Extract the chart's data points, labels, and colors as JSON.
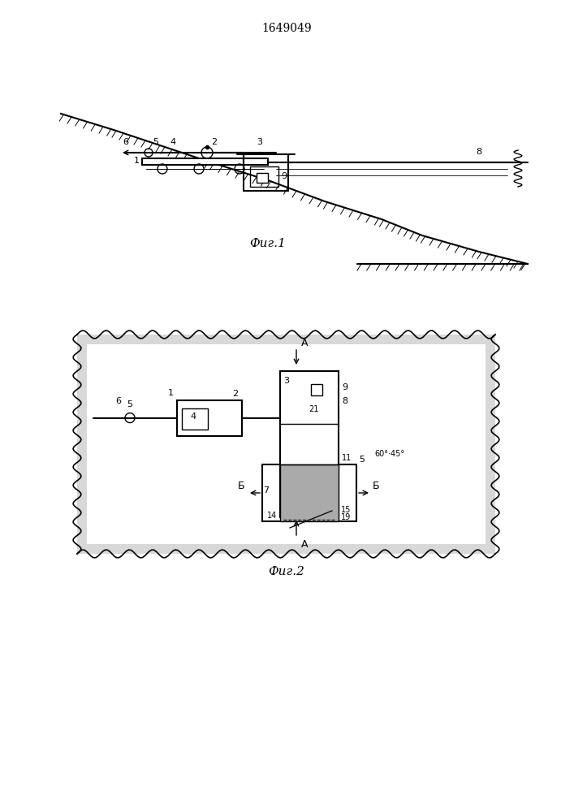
{
  "title": "1649049",
  "fig1_caption": "Фиг.1",
  "fig2_caption": "Фиг.2",
  "bg_color": "#ffffff",
  "line_color": "#000000"
}
